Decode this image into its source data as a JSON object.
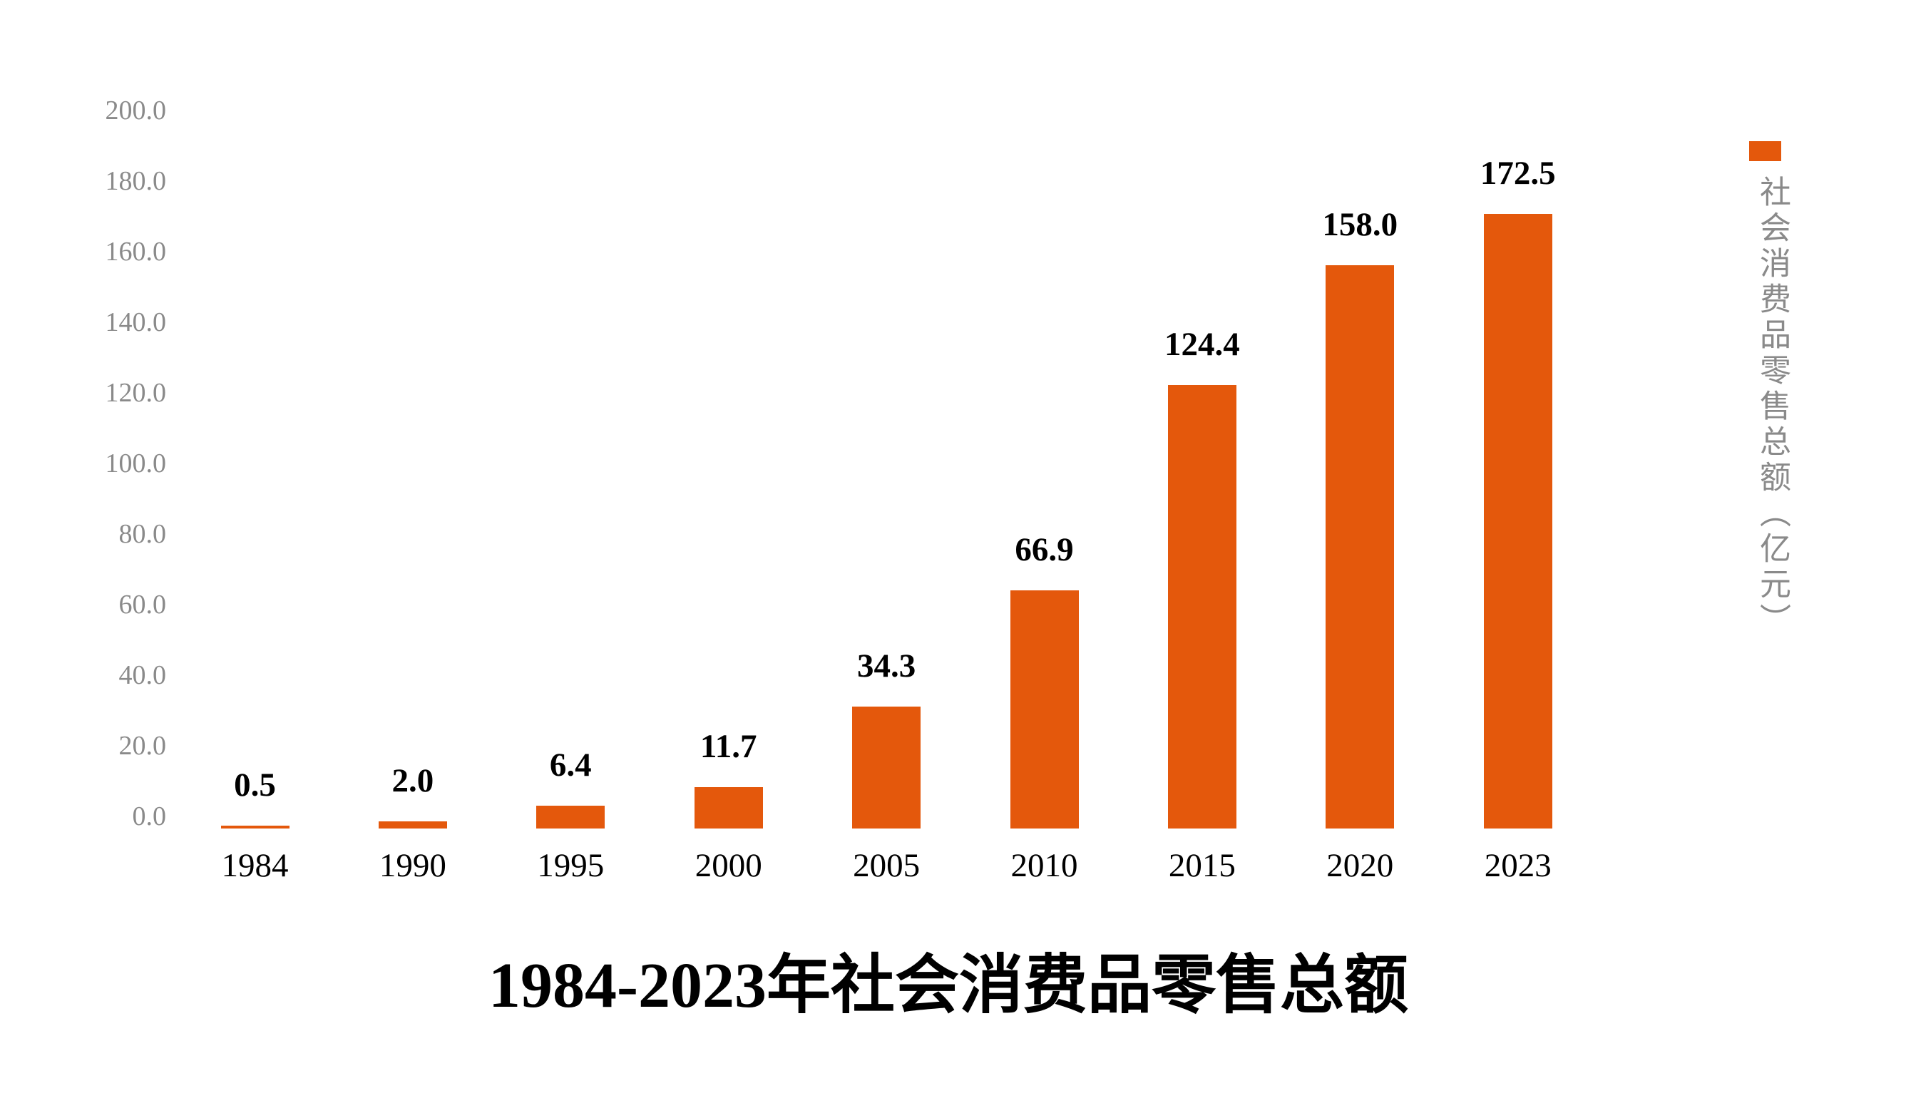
{
  "chart_data": {
    "type": "bar",
    "title": "1984-2023年社会消费品零售总额",
    "categories": [
      "1984",
      "1990",
      "1995",
      "2000",
      "2005",
      "2010",
      "2015",
      "2020",
      "2023"
    ],
    "series": [
      {
        "name": "社会消费品零售总额（亿元）",
        "values": [
          0.5,
          2.0,
          6.4,
          11.7,
          34.3,
          66.9,
          124.4,
          158.0,
          172.5
        ],
        "value_labels": [
          "0.5",
          "2.0",
          "6.4",
          "11.7",
          "34.3",
          "66.9",
          "124.4",
          "158.0",
          "172.5"
        ],
        "color": "#e4580c"
      }
    ],
    "xlabel": "",
    "ylabel": "",
    "ylim": [
      0,
      200
    ],
    "ytick_step": 20,
    "ytick_labels": [
      "0.0",
      "20.0",
      "40.0",
      "60.0",
      "80.0",
      "100.0",
      "120.0",
      "140.0",
      "160.0",
      "180.0",
      "200.0"
    ],
    "grid": false,
    "axis_lines": false,
    "legend_position": "right",
    "legend_text_orientation": "vertical"
  },
  "styles": {
    "background": "#ffffff",
    "bar_color": "#e4580c",
    "axis_label_color": "#8a8a8a",
    "legend_text_color": "#8a8a8a",
    "value_label_color": "#000000",
    "xtick_color": "#000000",
    "title_color": "#000000"
  }
}
